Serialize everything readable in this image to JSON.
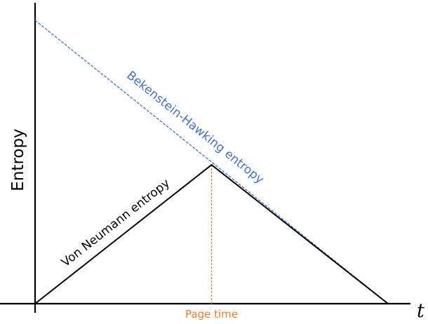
{
  "chart_data": {
    "type": "line",
    "title": "",
    "xlabel": "t",
    "ylabel": "Entropy",
    "xlim": [
      0,
      1
    ],
    "ylim": [
      0,
      1
    ],
    "grid": false,
    "legend": "none",
    "series": [
      {
        "name": "Bekenstein-Hawking entropy",
        "x": [
          0,
          1
        ],
        "y": [
          1,
          0
        ],
        "color": "#4472C4",
        "style": "dashed"
      },
      {
        "name": "Von Neumann entropy",
        "x": [
          0,
          0.5,
          1
        ],
        "y": [
          0,
          0.49,
          0
        ],
        "color": "#000000",
        "style": "solid"
      }
    ],
    "annotations": [
      {
        "label": "Page time",
        "x": 0.5,
        "color": "#ED7D31",
        "style": "dotted"
      }
    ]
  }
}
